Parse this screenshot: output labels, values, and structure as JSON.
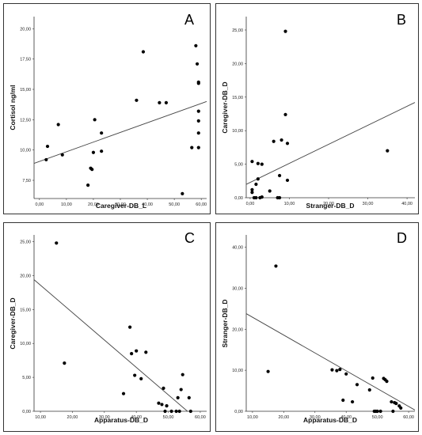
{
  "chart_data": [
    {
      "type": "scatter",
      "panel_label": "A",
      "xlabel": "Caregiver-DB_L",
      "ylabel": "Cortisol ng/ml",
      "xlim": [
        -2,
        62
      ],
      "ylim": [
        6,
        21
      ],
      "xticks": [
        "0,00",
        "10,00",
        "20,00",
        "30,00",
        "40,00",
        "50,00",
        "60,00"
      ],
      "xtick_values": [
        0,
        10,
        20,
        30,
        40,
        50,
        60
      ],
      "yticks": [
        "7,50",
        "10,00",
        "12,50",
        "15,00",
        "17,50",
        "20,00"
      ],
      "ytick_values": [
        7.5,
        10,
        12.5,
        15,
        17.5,
        20
      ],
      "points": [
        [
          2.5,
          9.2
        ],
        [
          3,
          10.3
        ],
        [
          7,
          12.1
        ],
        [
          8.5,
          9.6
        ],
        [
          18,
          7.1
        ],
        [
          19,
          8.5
        ],
        [
          19.5,
          8.4
        ],
        [
          20,
          9.8
        ],
        [
          20.5,
          12.5
        ],
        [
          23,
          11.4
        ],
        [
          23,
          9.9
        ],
        [
          36,
          14.1
        ],
        [
          38.5,
          18.1
        ],
        [
          44.5,
          13.9
        ],
        [
          47,
          13.9
        ],
        [
          53,
          6.4
        ],
        [
          56.5,
          10.2
        ],
        [
          58,
          18.6
        ],
        [
          58.5,
          17.1
        ],
        [
          59,
          15.6
        ],
        [
          59,
          15.5
        ],
        [
          59,
          13.2
        ],
        [
          59,
          12.4
        ],
        [
          59,
          11.4
        ],
        [
          59,
          10.2
        ]
      ],
      "trend_line": {
        "x": [
          -2,
          62
        ],
        "y": [
          8.9,
          14.0
        ]
      }
    },
    {
      "type": "scatter",
      "panel_label": "B",
      "xlabel": "Stranger-DB_D",
      "ylabel": "Caregiver-DB_D",
      "xlim": [
        -1,
        42
      ],
      "ylim": [
        0,
        27
      ],
      "xticks": [
        "0,00",
        "10,00",
        "20,00",
        "30,00",
        "40,00"
      ],
      "xtick_values": [
        0,
        10,
        20,
        30,
        40
      ],
      "yticks": [
        "0,00",
        "5,00",
        "10,00",
        "15,00",
        "20,00",
        "25,00"
      ],
      "ytick_values": [
        0,
        5,
        10,
        15,
        20,
        25
      ],
      "points": [
        [
          0.5,
          5.4
        ],
        [
          0.5,
          1.2
        ],
        [
          0.5,
          0.8
        ],
        [
          1,
          0
        ],
        [
          1.5,
          0
        ],
        [
          1.5,
          2.0
        ],
        [
          2,
          5.1
        ],
        [
          2,
          2.8
        ],
        [
          2.5,
          0
        ],
        [
          3,
          5.0
        ],
        [
          3,
          0.1
        ],
        [
          5,
          1.0
        ],
        [
          6,
          8.4
        ],
        [
          7,
          0
        ],
        [
          7.5,
          3.3
        ],
        [
          7.5,
          0
        ],
        [
          8,
          8.6
        ],
        [
          9,
          24.8
        ],
        [
          9,
          12.4
        ],
        [
          9.5,
          8.1
        ],
        [
          9.5,
          2.6
        ],
        [
          35,
          7.0
        ]
      ],
      "trend_line": {
        "x": [
          -1,
          42
        ],
        "y": [
          2.0,
          14.2
        ]
      }
    },
    {
      "type": "scatter",
      "panel_label": "C",
      "xlabel": "Apparatus-DB_D",
      "ylabel": "Caregiver-DB_D",
      "xlim": [
        8,
        62
      ],
      "ylim": [
        0,
        26
      ],
      "xticks": [
        "10,00",
        "20,00",
        "30,00",
        "40,00",
        "50,00",
        "60,00"
      ],
      "xtick_values": [
        10,
        20,
        30,
        40,
        50,
        60
      ],
      "yticks": [
        "0,00",
        "5,00",
        "10,00",
        "15,00",
        "20,00",
        "25,00"
      ],
      "ytick_values": [
        0,
        5,
        10,
        15,
        20,
        25
      ],
      "points": [
        [
          15,
          24.8
        ],
        [
          17.5,
          7.1
        ],
        [
          36,
          2.6
        ],
        [
          38,
          12.4
        ],
        [
          38.5,
          8.5
        ],
        [
          39.5,
          5.3
        ],
        [
          40,
          8.9
        ],
        [
          41.5,
          4.8
        ],
        [
          43,
          8.7
        ],
        [
          47,
          1.2
        ],
        [
          48,
          1.0
        ],
        [
          48.5,
          3.4
        ],
        [
          49,
          0
        ],
        [
          49.5,
          0.8
        ],
        [
          51,
          0
        ],
        [
          52.5,
          0
        ],
        [
          53,
          2.0
        ],
        [
          53.5,
          0
        ],
        [
          54,
          3.2
        ],
        [
          54.5,
          5.4
        ],
        [
          56.5,
          2.0
        ],
        [
          57,
          0
        ]
      ],
      "trend_line": {
        "x": [
          8,
          56
        ],
        "y": [
          19.4,
          0
        ]
      }
    },
    {
      "type": "scatter",
      "panel_label": "D",
      "xlabel": "Apparatus-DB_D",
      "ylabel": "Stranger-DB_D",
      "xlim": [
        8,
        62
      ],
      "ylim": [
        0,
        43
      ],
      "xticks": [
        "10,00",
        "20,00",
        "30,00",
        "40,00",
        "50,00",
        "60,00"
      ],
      "xtick_values": [
        10,
        20,
        30,
        40,
        50,
        60
      ],
      "yticks": [
        "0,00",
        "10,00",
        "20,00",
        "30,00",
        "40,00"
      ],
      "ytick_values": [
        0,
        10,
        20,
        30,
        40
      ],
      "points": [
        [
          15,
          9.7
        ],
        [
          17.5,
          35.4
        ],
        [
          35.5,
          10.1
        ],
        [
          37,
          9.9
        ],
        [
          38,
          10.2
        ],
        [
          39,
          2.7
        ],
        [
          40,
          9.1
        ],
        [
          42,
          2.3
        ],
        [
          43.5,
          6.5
        ],
        [
          47.5,
          5.2
        ],
        [
          48.5,
          8.1
        ],
        [
          49,
          0
        ],
        [
          49.5,
          0
        ],
        [
          50,
          0
        ],
        [
          51,
          0
        ],
        [
          52,
          8.0
        ],
        [
          52.5,
          7.7
        ],
        [
          53,
          7.3
        ],
        [
          54.5,
          2.3
        ],
        [
          55.5,
          2.1
        ],
        [
          56,
          1.9
        ],
        [
          57,
          1.3
        ],
        [
          57.5,
          0.8
        ],
        [
          55,
          0
        ]
      ],
      "trend_line": {
        "x": [
          8,
          62
        ],
        "y": [
          23.8,
          0.3
        ]
      }
    }
  ]
}
